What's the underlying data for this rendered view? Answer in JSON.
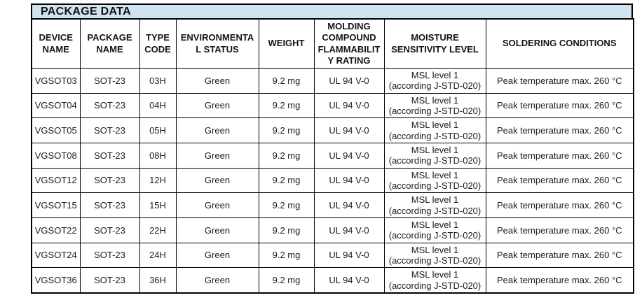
{
  "title": "PACKAGE DATA",
  "colors": {
    "title_bg": "#cfe3f1",
    "border": "#000000",
    "text": "#1c1c1c"
  },
  "table": {
    "headers": [
      "DEVICE\nNAME",
      "PACKAGE\nNAME",
      "TYPE\nCODE",
      "ENVIRONMENTA\nL STATUS",
      "WEIGHT",
      "MOLDING\nCOMPOUND\nFLAMMABILIT\nY RATING",
      "MOISTURE\nSENSITIVITY LEVEL",
      "SOLDERING CONDITIONS"
    ],
    "column_keys": [
      "device-name",
      "package-name",
      "type-code",
      "environmental-status",
      "weight",
      "molding-flammability-rating",
      "moisture-sensitivity-level",
      "soldering-conditions"
    ],
    "rows": [
      [
        "VGSOT03",
        "SOT-23",
        "03H",
        "Green",
        "9.2 mg",
        "UL 94 V-0",
        "MSL level 1\n(according J-STD-020)",
        "Peak temperature max. 260 °C"
      ],
      [
        "VGSOT04",
        "SOT-23",
        "04H",
        "Green",
        "9.2 mg",
        "UL 94 V-0",
        "MSL level 1\n(according J-STD-020)",
        "Peak temperature max. 260 °C"
      ],
      [
        "VGSOT05",
        "SOT-23",
        "05H",
        "Green",
        "9.2 mg",
        "UL 94 V-0",
        "MSL level 1\n(according J-STD-020)",
        "Peak temperature max. 260 °C"
      ],
      [
        "VGSOT08",
        "SOT-23",
        "08H",
        "Green",
        "9.2 mg",
        "UL 94 V-0",
        "MSL level 1\n(according J-STD-020)",
        "Peak temperature max. 260 °C"
      ],
      [
        "VGSOT12",
        "SOT-23",
        "12H",
        "Green",
        "9.2 mg",
        "UL 94 V-0",
        "MSL level 1\n(according J-STD-020)",
        "Peak temperature max. 260 °C"
      ],
      [
        "VGSOT15",
        "SOT-23",
        "15H",
        "Green",
        "9.2 mg",
        "UL 94 V-0",
        "MSL level 1\n(according J-STD-020)",
        "Peak temperature max. 260 °C"
      ],
      [
        "VGSOT22",
        "SOT-23",
        "22H",
        "Green",
        "9.2 mg",
        "UL 94 V-0",
        "MSL level 1\n(according J-STD-020)",
        "Peak temperature max. 260 °C"
      ],
      [
        "VGSOT24",
        "SOT-23",
        "24H",
        "Green",
        "9.2 mg",
        "UL 94 V-0",
        "MSL level 1\n(according J-STD-020)",
        "Peak temperature max. 260 °C"
      ],
      [
        "VGSOT36",
        "SOT-23",
        "36H",
        "Green",
        "9.2 mg",
        "UL 94 V-0",
        "MSL level 1\n(according J-STD-020)",
        "Peak temperature max. 260 °C"
      ]
    ]
  }
}
